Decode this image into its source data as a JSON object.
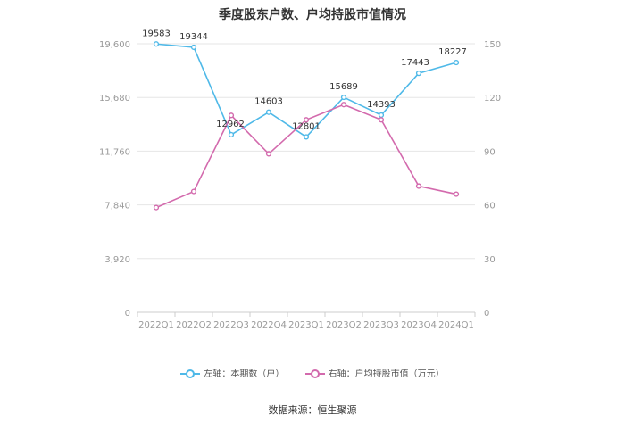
{
  "chart_data": {
    "type": "line",
    "title": "季度股东户数、户均持股市值情况",
    "categories": [
      "2022Q1",
      "2022Q2",
      "2022Q3",
      "2022Q4",
      "2023Q1",
      "2023Q2",
      "2023Q3",
      "2023Q4",
      "2024Q1"
    ],
    "left_axis": {
      "min": 0,
      "max": 19600,
      "ticks": [
        "0",
        "3,920",
        "7,840",
        "11,760",
        "15,680",
        "19,600"
      ]
    },
    "right_axis": {
      "min": 0,
      "max": 150,
      "ticks": [
        "0",
        "30",
        "60",
        "90",
        "120",
        "150"
      ]
    },
    "grid": true,
    "legend_position": "bottom",
    "series": [
      {
        "name": "左轴：本期数（户）",
        "axis": "left",
        "color": "#4fb9e8",
        "values": [
          19583,
          19344,
          12962,
          14603,
          12801,
          15689,
          14393,
          17443,
          18227
        ],
        "labels": [
          "19583",
          "19344",
          "12962",
          "14603",
          "12801",
          "15689",
          "14393",
          "17443",
          "18227"
        ]
      },
      {
        "name": "右轴：户均持股市值（万元）",
        "axis": "right",
        "color": "#d36aad",
        "values": [
          58.5,
          67.5,
          110,
          88.5,
          107.5,
          116,
          107.5,
          70.5,
          66
        ]
      }
    ]
  },
  "source_text": "数据来源：恒生聚源"
}
